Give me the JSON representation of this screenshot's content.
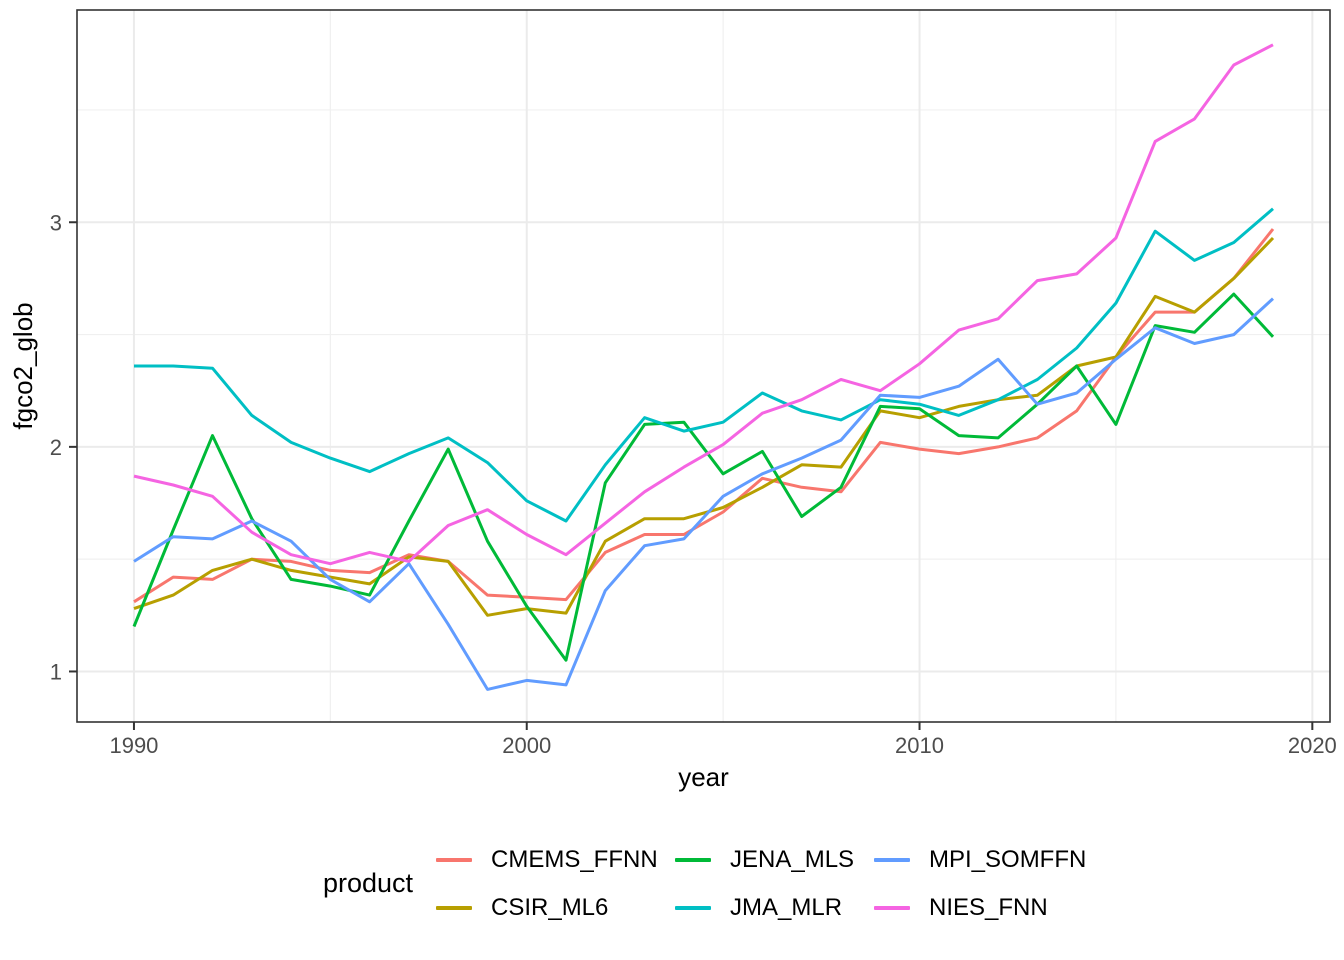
{
  "chart_data": {
    "type": "line",
    "xlabel": "year",
    "ylabel": "fgco2_glob",
    "x": [
      1990,
      1991,
      1992,
      1993,
      1994,
      1995,
      1996,
      1997,
      1998,
      1999,
      2000,
      2001,
      2002,
      2003,
      2004,
      2005,
      2006,
      2007,
      2008,
      2009,
      2010,
      2011,
      2012,
      2013,
      2014,
      2015,
      2016,
      2017,
      2018,
      2019
    ],
    "x_ticks": [
      1990,
      2000,
      2010,
      2020
    ],
    "x_minor_ticks": [
      1995,
      2005,
      2015
    ],
    "y_ticks": [
      1,
      2,
      3
    ],
    "y_minor_ticks": [
      1.5,
      2.5,
      3.5
    ],
    "xlim": [
      1988.55,
      2020.45
    ],
    "ylim": [
      0.775,
      3.945
    ],
    "grid": true,
    "legend_position": "bottom",
    "legend_title": "product",
    "series": [
      {
        "name": "CMEMS_FFNN",
        "color": "#F8766D",
        "values": [
          1.31,
          1.42,
          1.41,
          1.5,
          1.49,
          1.45,
          1.44,
          1.52,
          1.49,
          1.34,
          1.33,
          1.32,
          1.53,
          1.61,
          1.61,
          1.71,
          1.86,
          1.82,
          1.8,
          2.02,
          1.99,
          1.97,
          2.0,
          2.04,
          2.16,
          2.4,
          2.6,
          2.6,
          2.75,
          2.97
        ]
      },
      {
        "name": "CSIR_ML6",
        "color": "#B79F00",
        "values": [
          1.28,
          1.34,
          1.45,
          1.5,
          1.45,
          1.42,
          1.39,
          1.51,
          1.49,
          1.25,
          1.28,
          1.26,
          1.58,
          1.68,
          1.68,
          1.73,
          1.82,
          1.92,
          1.91,
          2.16,
          2.13,
          2.18,
          2.21,
          2.23,
          2.36,
          2.4,
          2.67,
          2.6,
          2.75,
          2.93
        ]
      },
      {
        "name": "JENA_MLS",
        "color": "#00BA38",
        "values": [
          1.2,
          1.63,
          2.05,
          1.68,
          1.41,
          1.38,
          1.34,
          1.67,
          1.99,
          1.58,
          1.29,
          1.05,
          1.84,
          2.1,
          2.11,
          1.88,
          1.98,
          1.69,
          1.82,
          2.18,
          2.17,
          2.05,
          2.04,
          2.19,
          2.36,
          2.1,
          2.54,
          2.51,
          2.68,
          2.49
        ]
      },
      {
        "name": "JMA_MLR",
        "color": "#00BFC4",
        "values": [
          2.36,
          2.36,
          2.35,
          2.14,
          2.02,
          1.95,
          1.89,
          1.97,
          2.04,
          1.93,
          1.76,
          1.67,
          1.92,
          2.13,
          2.07,
          2.11,
          2.24,
          2.16,
          2.12,
          2.21,
          2.19,
          2.14,
          2.21,
          2.3,
          2.44,
          2.64,
          2.96,
          2.83,
          2.91,
          3.06
        ]
      },
      {
        "name": "MPI_SOMFFN",
        "color": "#619CFF",
        "values": [
          1.49,
          1.6,
          1.59,
          1.67,
          1.58,
          1.41,
          1.31,
          1.48,
          1.21,
          0.92,
          0.96,
          0.94,
          1.36,
          1.56,
          1.59,
          1.78,
          1.88,
          1.95,
          2.03,
          2.23,
          2.22,
          2.27,
          2.39,
          2.19,
          2.24,
          2.39,
          2.53,
          2.46,
          2.5,
          2.66
        ]
      },
      {
        "name": "NIES_FNN",
        "color": "#F564E2",
        "values": [
          1.87,
          1.83,
          1.78,
          1.62,
          1.52,
          1.48,
          1.53,
          1.49,
          1.65,
          1.72,
          1.61,
          1.52,
          1.66,
          1.8,
          1.91,
          2.01,
          2.15,
          2.21,
          2.3,
          2.25,
          2.37,
          2.52,
          2.57,
          2.74,
          2.77,
          2.93,
          3.36,
          3.46,
          3.7,
          3.79
        ]
      }
    ],
    "theme": {
      "panel_background": "#FFFFFF",
      "panel_border": "#333333",
      "grid_major": "#EBEBEB",
      "grid_minor": "#F0F0F0",
      "tick_color": "#333333",
      "tick_label_color": "#4D4D4D",
      "axis_title_color": "#000000"
    }
  }
}
